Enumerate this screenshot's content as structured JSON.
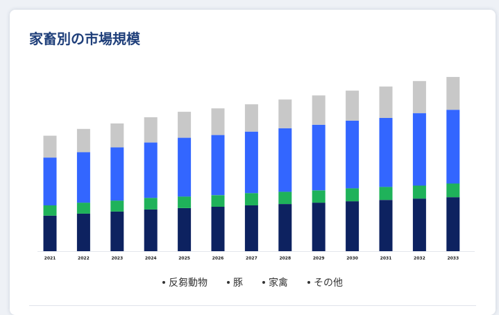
{
  "title": "家畜別の市場規模",
  "chart_data": {
    "type": "bar",
    "stacked": true,
    "categories": [
      "2021",
      "2022",
      "2023",
      "2024",
      "2025",
      "2026",
      "2027",
      "2028",
      "2029",
      "2030",
      "2031",
      "2032",
      "2033"
    ],
    "series": [
      {
        "name": "反芻動物",
        "color": "#0d2260",
        "values": [
          52,
          55,
          58,
          61,
          63,
          65,
          67,
          69,
          71,
          73,
          75,
          77,
          79
        ]
      },
      {
        "name": "豚",
        "color": "#1fb25a",
        "values": [
          15,
          16,
          16,
          17,
          17,
          17,
          18,
          18,
          18,
          19,
          19,
          19,
          20
        ]
      },
      {
        "name": "家禽",
        "color": "#3366ff",
        "values": [
          70,
          74,
          78,
          81,
          86,
          88,
          90,
          93,
          96,
          99,
          101,
          106,
          108
        ]
      },
      {
        "name": "その他",
        "color": "#c8c8c8",
        "values": [
          32,
          34,
          35,
          37,
          38,
          39,
          40,
          42,
          43,
          44,
          46,
          47,
          48
        ]
      }
    ],
    "ylim": [
      0,
      260
    ],
    "grid": false,
    "legend": "bottom-center"
  }
}
